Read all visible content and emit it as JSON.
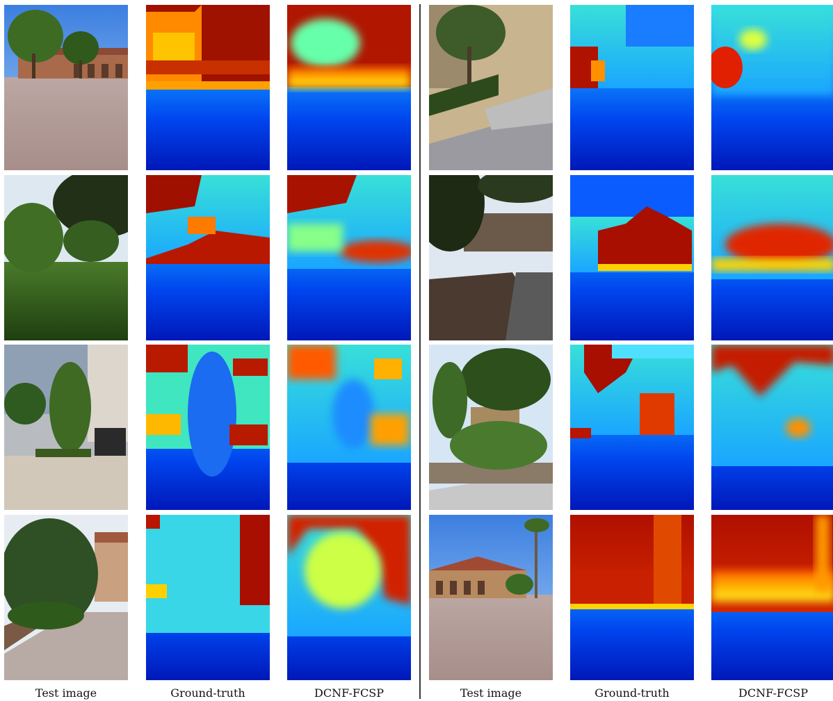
{
  "captions": {
    "left": [
      "Test image",
      "Ground-truth",
      "DCNF-FCSP"
    ],
    "right": [
      "Test image",
      "Ground-truth",
      "DCNF-FCSP"
    ]
  }
}
